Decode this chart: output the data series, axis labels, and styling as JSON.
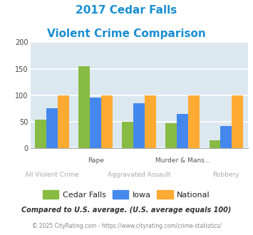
{
  "title_line1": "2017 Cedar Falls",
  "title_line2": "Violent Crime Comparison",
  "title_color": "#1a8fd1",
  "categories": [
    "All Violent Crime",
    "Rape",
    "Aggravated Assault",
    "Murder & Mans...",
    "Robbery"
  ],
  "cat_labels_top": [
    "",
    "Rape",
    "",
    "Murder & Mans...",
    ""
  ],
  "cat_labels_bot": [
    "All Violent Crime",
    "",
    "Aggravated Assault",
    "",
    "Robbery"
  ],
  "cedar_falls": [
    54,
    155,
    50,
    47,
    15
  ],
  "iowa": [
    75,
    95,
    85,
    64,
    41
  ],
  "national": [
    100,
    100,
    100,
    100,
    100
  ],
  "cedar_falls_color": "#88bb44",
  "iowa_color": "#4488ee",
  "national_color": "#ffaa33",
  "ylim": [
    0,
    200
  ],
  "yticks": [
    0,
    50,
    100,
    150,
    200
  ],
  "background_color": "#dce8f0",
  "grid_color": "#ffffff",
  "legend_labels": [
    "Cedar Falls",
    "Iowa",
    "National"
  ],
  "footnote1": "Compared to U.S. average. (U.S. average equals 100)",
  "footnote2": "© 2025 CityRating.com - https://www.cityrating.com/crime-statistics/",
  "footnote1_color": "#333333",
  "footnote2_color": "#888888",
  "top_label_color": "#555555",
  "bot_label_color": "#aaaaaa"
}
